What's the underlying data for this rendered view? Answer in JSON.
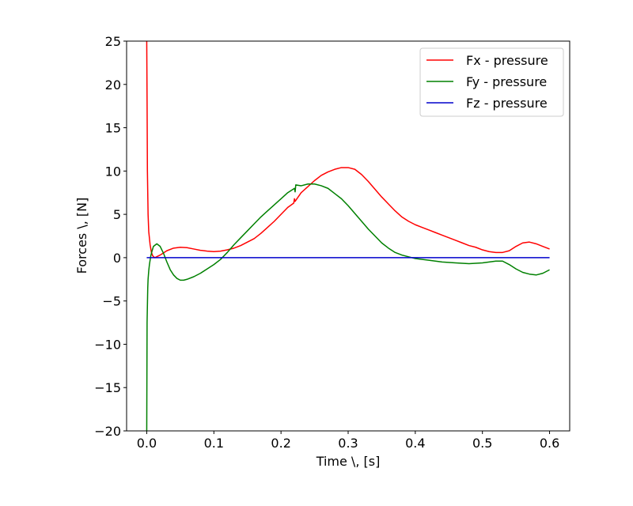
{
  "chart_data": {
    "type": "line",
    "xlabel": "Time \\, [s]",
    "ylabel": "Forces \\, [N]",
    "xlim": [
      -0.03,
      0.63
    ],
    "ylim": [
      -20,
      25
    ],
    "x_ticks": [
      0.0,
      0.1,
      0.2,
      0.3,
      0.4,
      0.5,
      0.6
    ],
    "x_tick_labels": [
      "0.0",
      "0.1",
      "0.2",
      "0.3",
      "0.4",
      "0.5",
      "0.6"
    ],
    "y_ticks": [
      -20,
      -15,
      -10,
      -5,
      0,
      5,
      10,
      15,
      20,
      25
    ],
    "y_tick_labels": [
      "−20",
      "−15",
      "−10",
      "−5",
      "0",
      "5",
      "10",
      "15",
      "20",
      "25"
    ],
    "grid": false,
    "legend_position": "top-right",
    "series": [
      {
        "name": "Fx - pressure",
        "color": "#ff0000",
        "x": [
          0.0,
          0.0005,
          0.001,
          0.002,
          0.003,
          0.005,
          0.007,
          0.009,
          0.012,
          0.02,
          0.03,
          0.04,
          0.05,
          0.06,
          0.07,
          0.08,
          0.09,
          0.1,
          0.11,
          0.12,
          0.13,
          0.14,
          0.15,
          0.16,
          0.17,
          0.18,
          0.19,
          0.2,
          0.21,
          0.219,
          0.22,
          0.221,
          0.23,
          0.24,
          0.25,
          0.26,
          0.27,
          0.28,
          0.29,
          0.3,
          0.31,
          0.32,
          0.33,
          0.34,
          0.35,
          0.36,
          0.37,
          0.38,
          0.39,
          0.4,
          0.41,
          0.42,
          0.43,
          0.44,
          0.45,
          0.46,
          0.47,
          0.48,
          0.49,
          0.5,
          0.51,
          0.52,
          0.53,
          0.54,
          0.55,
          0.56,
          0.57,
          0.58,
          0.59,
          0.6
        ],
        "values": [
          25,
          18,
          10,
          5,
          3,
          1.5,
          0.6,
          0.2,
          0.0,
          0.3,
          0.8,
          1.1,
          1.2,
          1.15,
          1.0,
          0.85,
          0.75,
          0.7,
          0.75,
          0.9,
          1.1,
          1.4,
          1.8,
          2.2,
          2.8,
          3.5,
          4.2,
          5.0,
          5.8,
          6.3,
          6.8,
          6.5,
          7.5,
          8.2,
          8.9,
          9.5,
          9.9,
          10.2,
          10.4,
          10.4,
          10.2,
          9.6,
          8.8,
          7.9,
          7.0,
          6.2,
          5.4,
          4.7,
          4.2,
          3.8,
          3.5,
          3.2,
          2.9,
          2.6,
          2.3,
          2.0,
          1.7,
          1.4,
          1.2,
          0.9,
          0.7,
          0.6,
          0.6,
          0.8,
          1.3,
          1.7,
          1.8,
          1.6,
          1.3,
          1.0
        ]
      },
      {
        "name": "Fy - pressure",
        "color": "#008000",
        "x": [
          0.0,
          0.0005,
          0.001,
          0.0015,
          0.002,
          0.003,
          0.004,
          0.005,
          0.006,
          0.008,
          0.01,
          0.015,
          0.02,
          0.025,
          0.03,
          0.035,
          0.04,
          0.045,
          0.05,
          0.055,
          0.06,
          0.07,
          0.08,
          0.09,
          0.1,
          0.11,
          0.12,
          0.13,
          0.14,
          0.15,
          0.16,
          0.17,
          0.18,
          0.19,
          0.2,
          0.21,
          0.22,
          0.221,
          0.222,
          0.23,
          0.24,
          0.25,
          0.26,
          0.27,
          0.28,
          0.29,
          0.3,
          0.31,
          0.32,
          0.33,
          0.34,
          0.35,
          0.36,
          0.37,
          0.38,
          0.39,
          0.4,
          0.42,
          0.44,
          0.46,
          0.48,
          0.5,
          0.52,
          0.53,
          0.54,
          0.55,
          0.56,
          0.57,
          0.58,
          0.59,
          0.6
        ],
        "values": [
          -20,
          -7.5,
          -5.5,
          -3.5,
          -2.5,
          -1.5,
          -0.8,
          -0.3,
          0.2,
          0.8,
          1.3,
          1.6,
          1.3,
          0.5,
          -0.5,
          -1.4,
          -2.0,
          -2.4,
          -2.6,
          -2.6,
          -2.5,
          -2.2,
          -1.8,
          -1.3,
          -0.8,
          -0.2,
          0.6,
          1.5,
          2.3,
          3.1,
          3.9,
          4.7,
          5.4,
          6.1,
          6.8,
          7.5,
          8.0,
          7.6,
          8.4,
          8.3,
          8.5,
          8.5,
          8.3,
          8.0,
          7.4,
          6.8,
          6.0,
          5.1,
          4.2,
          3.3,
          2.5,
          1.7,
          1.1,
          0.6,
          0.3,
          0.1,
          -0.1,
          -0.3,
          -0.5,
          -0.6,
          -0.7,
          -0.6,
          -0.4,
          -0.4,
          -0.8,
          -1.3,
          -1.7,
          -1.9,
          -2.0,
          -1.8,
          -1.4
        ]
      },
      {
        "name": "Fz - pressure",
        "color": "#0000cc",
        "x": [
          0.0,
          0.6
        ],
        "values": [
          0.0,
          0.0
        ]
      }
    ]
  }
}
